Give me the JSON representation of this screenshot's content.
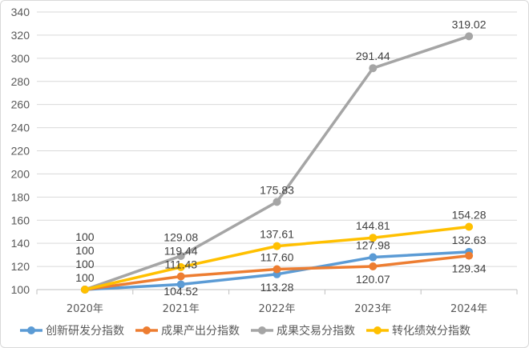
{
  "chart_data": {
    "type": "line",
    "categories": [
      "2020年",
      "2021年",
      "2022年",
      "2023年",
      "2024年"
    ],
    "ylim": [
      100,
      340
    ],
    "yticks": [
      100,
      120,
      140,
      160,
      180,
      200,
      220,
      240,
      260,
      280,
      300,
      320,
      340
    ],
    "grid": true,
    "legend_position": "bottom",
    "series": [
      {
        "name": "创新研发分指数",
        "color": "#5b9bd5",
        "values": [
          100,
          104.52,
          113.28,
          127.98,
          132.63
        ],
        "labels": [
          "100",
          "104.52",
          "113.28",
          "127.98",
          "132.63"
        ],
        "label_pos": [
          "above",
          "below",
          "below",
          "above",
          "above"
        ]
      },
      {
        "name": "成果产出分指数",
        "color": "#ed7d31",
        "values": [
          100,
          111.43,
          117.6,
          120.07,
          129.34
        ],
        "labels": [
          "100",
          "111.43",
          "117.60",
          "120.07",
          "129.34"
        ],
        "label_pos": [
          "above",
          "above",
          "above",
          "below",
          "below"
        ]
      },
      {
        "name": "成果交易分指数",
        "color": "#a5a5a5",
        "values": [
          100,
          129.08,
          175.83,
          291.44,
          319.02
        ],
        "labels": [
          "100",
          "129.08",
          "175.83",
          "291.44",
          "319.02"
        ],
        "label_pos": [
          "above",
          "above",
          "above",
          "above",
          "above"
        ]
      },
      {
        "name": "转化绩效分指数",
        "color": "#ffc000",
        "values": [
          100,
          119.44,
          137.61,
          144.81,
          154.28
        ],
        "labels": [
          "100",
          "119.44",
          "137.61",
          "144.81",
          "154.28"
        ],
        "label_pos": [
          "above",
          "above",
          "above",
          "above",
          "above"
        ]
      }
    ]
  }
}
